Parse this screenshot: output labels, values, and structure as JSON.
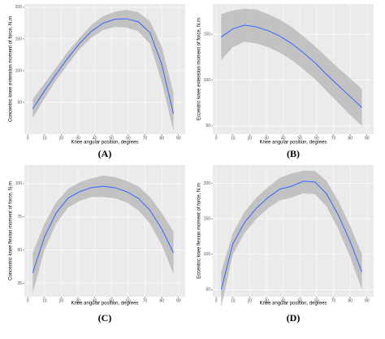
{
  "chart_data": [
    {
      "type": "line",
      "panel": "(A)",
      "x_label": "Knee angular position, degrees",
      "y_label": "Concentric knee extension moment of force, N.m",
      "x": [
        3,
        10,
        17,
        24,
        31,
        38,
        45,
        52,
        59,
        66,
        73,
        80,
        87
      ],
      "values": [
        40,
        68,
        95,
        120,
        143,
        162,
        175,
        181,
        182,
        177,
        160,
        110,
        32
      ],
      "upper": [
        55,
        80,
        105,
        130,
        152,
        172,
        186,
        193,
        196,
        192,
        178,
        138,
        65
      ],
      "lower": [
        25,
        56,
        85,
        110,
        134,
        152,
        164,
        169,
        168,
        162,
        142,
        82,
        5
      ],
      "color": "#3366ff",
      "band_color": "#bebebe",
      "xlim": [
        -2,
        94
      ],
      "xticks": [
        0,
        10,
        20,
        30,
        40,
        50,
        60,
        70,
        80,
        90
      ],
      "ylim": [
        0,
        205
      ],
      "yticks": [
        50,
        100,
        150,
        200
      ],
      "grid": true
    },
    {
      "type": "line",
      "panel": "(B)",
      "x_label": "Knee angular position, degrees",
      "y_label": "Eccentric knee extension moment of force, N.m",
      "x": [
        3,
        10,
        17,
        24,
        31,
        38,
        45,
        52,
        59,
        66,
        73,
        80,
        87
      ],
      "values": [
        147,
        156,
        160,
        158,
        154,
        148,
        140,
        130,
        119,
        106,
        94,
        82,
        70
      ],
      "upper": [
        172,
        176,
        178,
        177,
        172,
        166,
        158,
        148,
        137,
        125,
        113,
        102,
        90
      ],
      "lower": [
        122,
        136,
        142,
        140,
        136,
        130,
        122,
        112,
        101,
        88,
        75,
        62,
        50
      ],
      "color": "#3366ff",
      "band_color": "#bebebe",
      "xlim": [
        -2,
        94
      ],
      "xticks": [
        0,
        10,
        20,
        30,
        40,
        50,
        60,
        70,
        80,
        90
      ],
      "ylim": [
        41,
        183
      ],
      "yticks": [
        50,
        100,
        150
      ],
      "grid": true
    },
    {
      "type": "line",
      "panel": "(C)",
      "x_label": "Knee angular position, degrees",
      "y_label": "Concentric knee flexion moment of force, N.m",
      "x": [
        3,
        10,
        17,
        24,
        31,
        38,
        45,
        52,
        59,
        66,
        73,
        80,
        87
      ],
      "values": [
        33,
        60,
        78,
        89,
        94,
        97,
        98,
        97,
        94,
        89,
        80,
        66,
        48
      ],
      "upper": [
        48,
        70,
        86,
        96,
        101,
        104,
        106,
        105,
        102,
        98,
        90,
        78,
        64
      ],
      "lower": [
        18,
        50,
        70,
        82,
        87,
        90,
        90,
        89,
        86,
        80,
        70,
        54,
        32
      ],
      "color": "#3366ff",
      "band_color": "#bebebe",
      "xlim": [
        -2,
        94
      ],
      "xticks": [
        0,
        10,
        20,
        30,
        40,
        50,
        60,
        70,
        80,
        90
      ],
      "ylim": [
        15,
        114
      ],
      "yticks": [
        25,
        50,
        75,
        100
      ],
      "grid": true
    },
    {
      "type": "line",
      "panel": "(D)",
      "x_label": "Knee angular position, degrees",
      "y_label": "Eccentric knee flexion moment of force, N.m",
      "x": [
        3,
        10,
        17,
        24,
        31,
        38,
        45,
        52,
        59,
        66,
        73,
        80,
        87
      ],
      "values": [
        50,
        115,
        145,
        165,
        180,
        192,
        196,
        203,
        202,
        185,
        155,
        118,
        75
      ],
      "upper": [
        75,
        130,
        160,
        180,
        195,
        208,
        214,
        218,
        218,
        203,
        175,
        140,
        100
      ],
      "lower": [
        25,
        100,
        130,
        150,
        165,
        176,
        180,
        186,
        185,
        167,
        135,
        96,
        50
      ],
      "color": "#3366ff",
      "band_color": "#bebebe",
      "xlim": [
        -2,
        94
      ],
      "xticks": [
        0,
        10,
        20,
        30,
        40,
        50,
        60,
        70,
        80,
        90
      ],
      "ylim": [
        40,
        226
      ],
      "yticks": [
        50,
        100,
        150,
        200
      ],
      "grid": true
    }
  ]
}
